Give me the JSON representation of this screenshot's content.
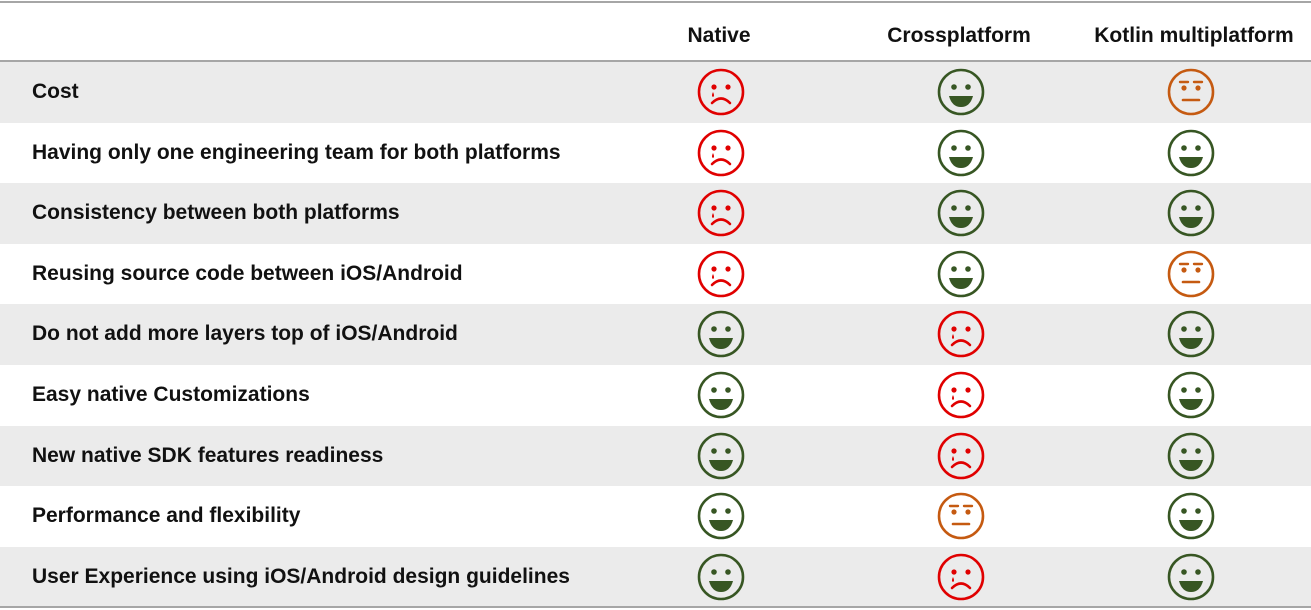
{
  "header": {
    "columns": [
      "Native",
      "Crossplatform",
      "Kotlin multiplatform"
    ]
  },
  "rows": [
    {
      "label": "Cost",
      "ratings": [
        "sad",
        "happy",
        "neutral"
      ]
    },
    {
      "label": "Having only one engineering team for both platforms",
      "ratings": [
        "sad",
        "happy",
        "happy"
      ]
    },
    {
      "label": "Consistency between both platforms",
      "ratings": [
        "sad",
        "happy",
        "happy"
      ]
    },
    {
      "label": "Reusing source code between iOS/Android",
      "ratings": [
        "sad",
        "happy",
        "neutral"
      ]
    },
    {
      "label": "Do not add more layers top of iOS/Android",
      "ratings": [
        "happy",
        "sad",
        "happy"
      ]
    },
    {
      "label": "Easy native Customizations",
      "ratings": [
        "happy",
        "sad",
        "happy"
      ]
    },
    {
      "label": "New native SDK features readiness",
      "ratings": [
        "happy",
        "sad",
        "happy"
      ]
    },
    {
      "label": "Performance and flexibility",
      "ratings": [
        "happy",
        "neutral",
        "happy"
      ]
    },
    {
      "label": "User Experience using iOS/Android design guidelines",
      "ratings": [
        "happy",
        "sad",
        "happy"
      ]
    }
  ],
  "colors": {
    "happy": "#375623",
    "sad": "#e00000",
    "neutral": "#c55a11",
    "shaded_row": "#ebebeb",
    "rule": "#a6a6a6"
  },
  "icons": {
    "happy": "happy-face-icon",
    "sad": "sad-face-icon",
    "neutral": "neutral-face-icon"
  }
}
